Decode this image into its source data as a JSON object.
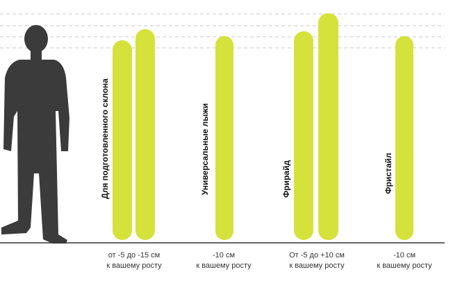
{
  "groups": [
    {
      "title": "Для подготовленного склона",
      "note": [
        "от -5 до -15 см",
        "к вашему росту"
      ]
    },
    {
      "title": "Универсальные лыжи",
      "note": [
        "-10 см",
        "к вашему росту"
      ]
    },
    {
      "title": "Фрирайд",
      "note": [
        "От -5 до +10 см",
        "к вашему росту"
      ]
    },
    {
      "title": "Фристайл",
      "note": [
        "-10 см",
        "к вашему росту"
      ]
    }
  ]
}
